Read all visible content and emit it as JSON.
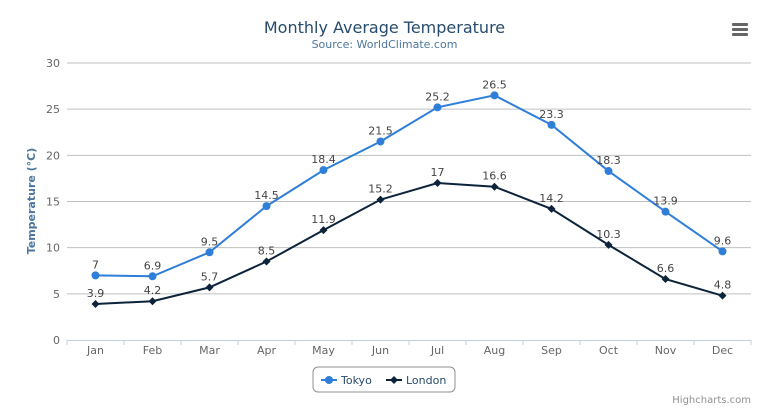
{
  "chart_data": {
    "type": "line",
    "title": "Monthly Average Temperature",
    "subtitle": "Source: WorldClimate.com",
    "xlabel": "",
    "ylabel": "Temperature (°C)",
    "categories": [
      "Jan",
      "Feb",
      "Mar",
      "Apr",
      "May",
      "Jun",
      "Jul",
      "Aug",
      "Sep",
      "Oct",
      "Nov",
      "Dec"
    ],
    "ylim": [
      0,
      30
    ],
    "yticks": [
      0,
      5,
      10,
      15,
      20,
      25,
      30
    ],
    "grid": true,
    "legend_placement": "bottom-center",
    "data_labels": true,
    "series": [
      {
        "name": "Tokyo",
        "color": "#2f7ed8",
        "marker": "circle",
        "values": [
          7.0,
          6.9,
          9.5,
          14.5,
          18.4,
          21.5,
          25.2,
          26.5,
          23.3,
          18.3,
          13.9,
          9.6
        ]
      },
      {
        "name": "London",
        "color": "#0d233a",
        "marker": "diamond",
        "values": [
          3.9,
          4.2,
          5.7,
          8.5,
          11.9,
          15.2,
          17.0,
          16.6,
          14.2,
          10.3,
          6.6,
          4.8
        ]
      }
    ]
  },
  "menu_icon": "hamburger-menu-icon",
  "credit": "Highcharts.com"
}
